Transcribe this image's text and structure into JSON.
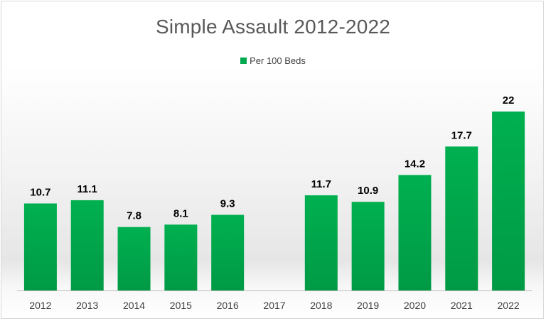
{
  "chart_data": {
    "type": "bar",
    "title": "Simple Assault 2012-2022",
    "categories": [
      "2012",
      "2013",
      "2014",
      "2015",
      "2016",
      "2017",
      "2018",
      "2019",
      "2020",
      "2021",
      "2022"
    ],
    "series": [
      {
        "name": "Per 100 Beds",
        "values": [
          10.7,
          11.1,
          7.8,
          8.1,
          9.3,
          null,
          11.7,
          10.9,
          14.2,
          17.7,
          22
        ],
        "labels": [
          "10.7",
          "11.1",
          "7.8",
          "8.1",
          "9.3",
          "",
          "11.7",
          "10.9",
          "14.2",
          "17.7",
          "22"
        ],
        "color": "#00a84f"
      }
    ],
    "xlabel": "",
    "ylabel": "",
    "ylim": [
      0,
      25
    ],
    "grid": false,
    "legend": "top-center",
    "data_labels": true
  }
}
